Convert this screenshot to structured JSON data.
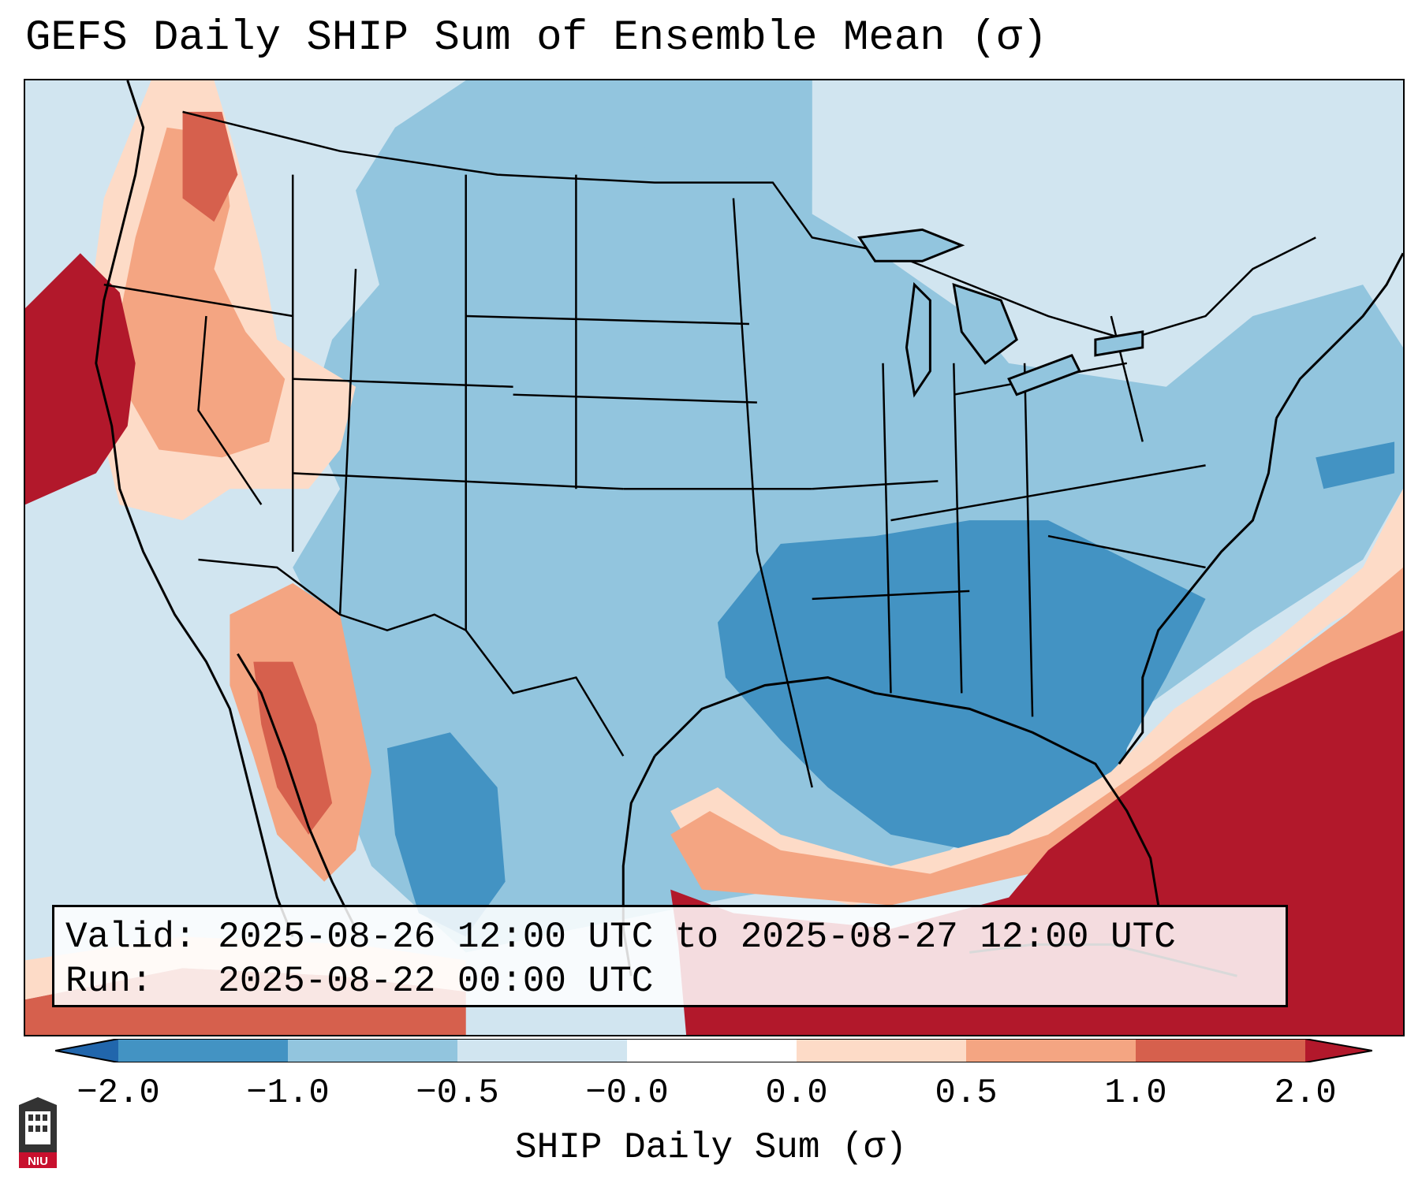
{
  "title": "GEFS Daily SHIP Sum of Ensemble Mean (σ)",
  "info": {
    "valid_label": "Valid:",
    "valid_value": "2025-08-26 12:00 UTC to 2025-08-27 12:00 UTC",
    "run_label": "Run:",
    "run_value": "2025-08-22 00:00 UTC"
  },
  "colorbar": {
    "label": "SHIP Daily Sum (σ)",
    "ticks": [
      "−2.0",
      "−1.0",
      "−0.5",
      "−0.0",
      "0.0",
      "0.5",
      "1.0",
      "2.0"
    ],
    "colors": [
      "#4393c3",
      "#92c5de",
      "#d1e5f0",
      "#ffffff",
      "#fddbc7",
      "#f4a582",
      "#d6604d",
      "#b2182b"
    ],
    "extend_low": "#2166ac",
    "extend_high": "#b2182b"
  },
  "logo": {
    "text": "NIU",
    "icon": "niu-logo-icon"
  }
}
